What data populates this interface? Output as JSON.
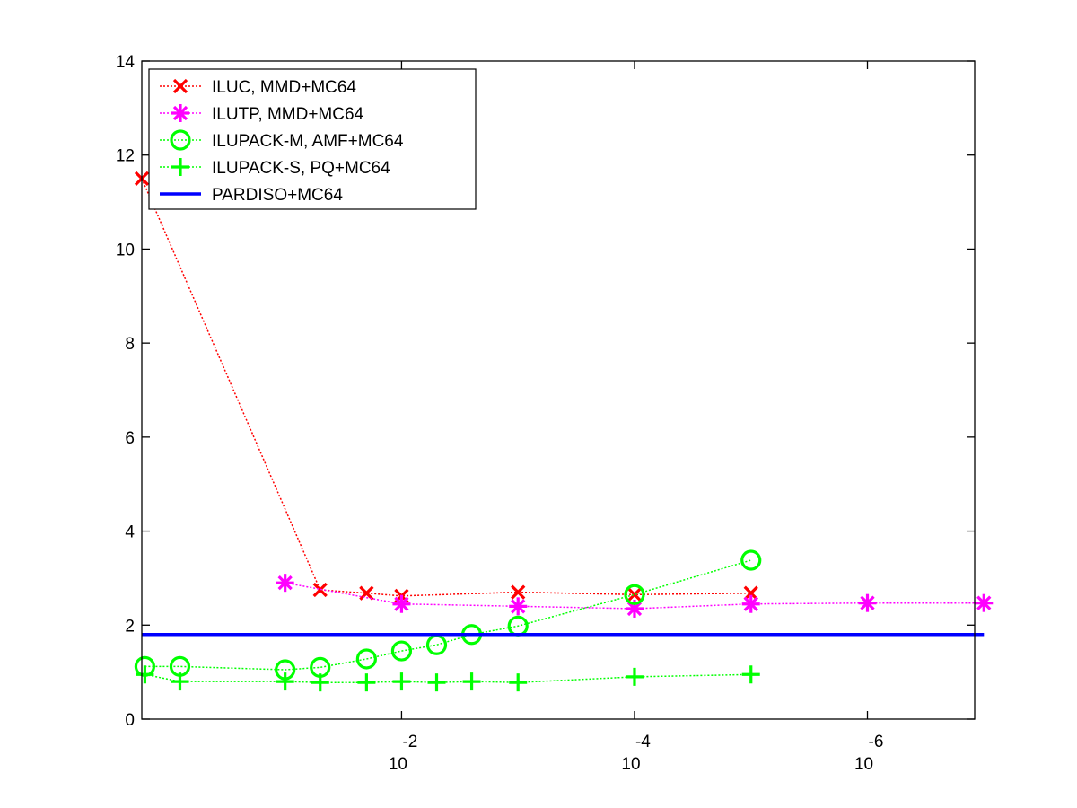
{
  "chart_data": {
    "type": "line",
    "title": "",
    "xlabel": "",
    "ylabel": "",
    "x_scale": "log",
    "x_reversed": true,
    "xlim": [
      1.7,
      1.2e-07
    ],
    "ylim": [
      0,
      14
    ],
    "yticks": [
      0,
      2,
      4,
      6,
      8,
      10,
      12,
      14
    ],
    "xticks": [
      {
        "value": 0.01,
        "base": "10",
        "exponent": "-2"
      },
      {
        "value": 0.0001,
        "base": "10",
        "exponent": "-4"
      },
      {
        "value": 1e-06,
        "base": "10",
        "exponent": "-6"
      }
    ],
    "grid": false,
    "legend_position": "top-left",
    "series": [
      {
        "name": "ILUC, MMD+MC64",
        "color": "#ff0000",
        "marker": "x",
        "line": "dotted",
        "x": [
          1.7,
          0.05,
          0.02,
          0.01,
          0.001,
          0.0001,
          1e-05
        ],
        "y": [
          11.5,
          2.75,
          2.68,
          2.62,
          2.7,
          2.65,
          2.68
        ]
      },
      {
        "name": "ILUTP, MMD+MC64",
        "color": "#ff00ff",
        "marker": "asterisk",
        "line": "dotted",
        "x": [
          0.1,
          0.01,
          0.001,
          0.0001,
          1e-05,
          1e-06,
          1e-07
        ],
        "y": [
          2.9,
          2.45,
          2.4,
          2.35,
          2.45,
          2.47,
          2.47
        ]
      },
      {
        "name": "ILUPACK-M, AMF+MC64",
        "color": "#00ff00",
        "marker": "circle",
        "line": "dotted",
        "x": [
          1.6,
          0.8,
          0.1,
          0.05,
          0.02,
          0.01,
          0.005,
          0.0025,
          0.001,
          0.0001,
          1e-05
        ],
        "y": [
          1.12,
          1.12,
          1.05,
          1.1,
          1.28,
          1.45,
          1.58,
          1.8,
          1.98,
          2.65,
          3.38
        ]
      },
      {
        "name": "ILUPACK-S, PQ+MC64",
        "color": "#00ff00",
        "marker": "plus",
        "line": "dotted",
        "x": [
          1.6,
          0.8,
          0.1,
          0.05,
          0.02,
          0.01,
          0.005,
          0.0025,
          0.001,
          0.0001,
          1e-05
        ],
        "y": [
          0.95,
          0.8,
          0.8,
          0.78,
          0.78,
          0.8,
          0.78,
          0.8,
          0.78,
          0.9,
          0.95
        ]
      },
      {
        "name": "PARDISO+MC64",
        "color": "#0000ff",
        "marker": "none",
        "line": "solid",
        "x": [
          1.7,
          1e-07
        ],
        "y": [
          1.8,
          1.8
        ]
      }
    ]
  }
}
